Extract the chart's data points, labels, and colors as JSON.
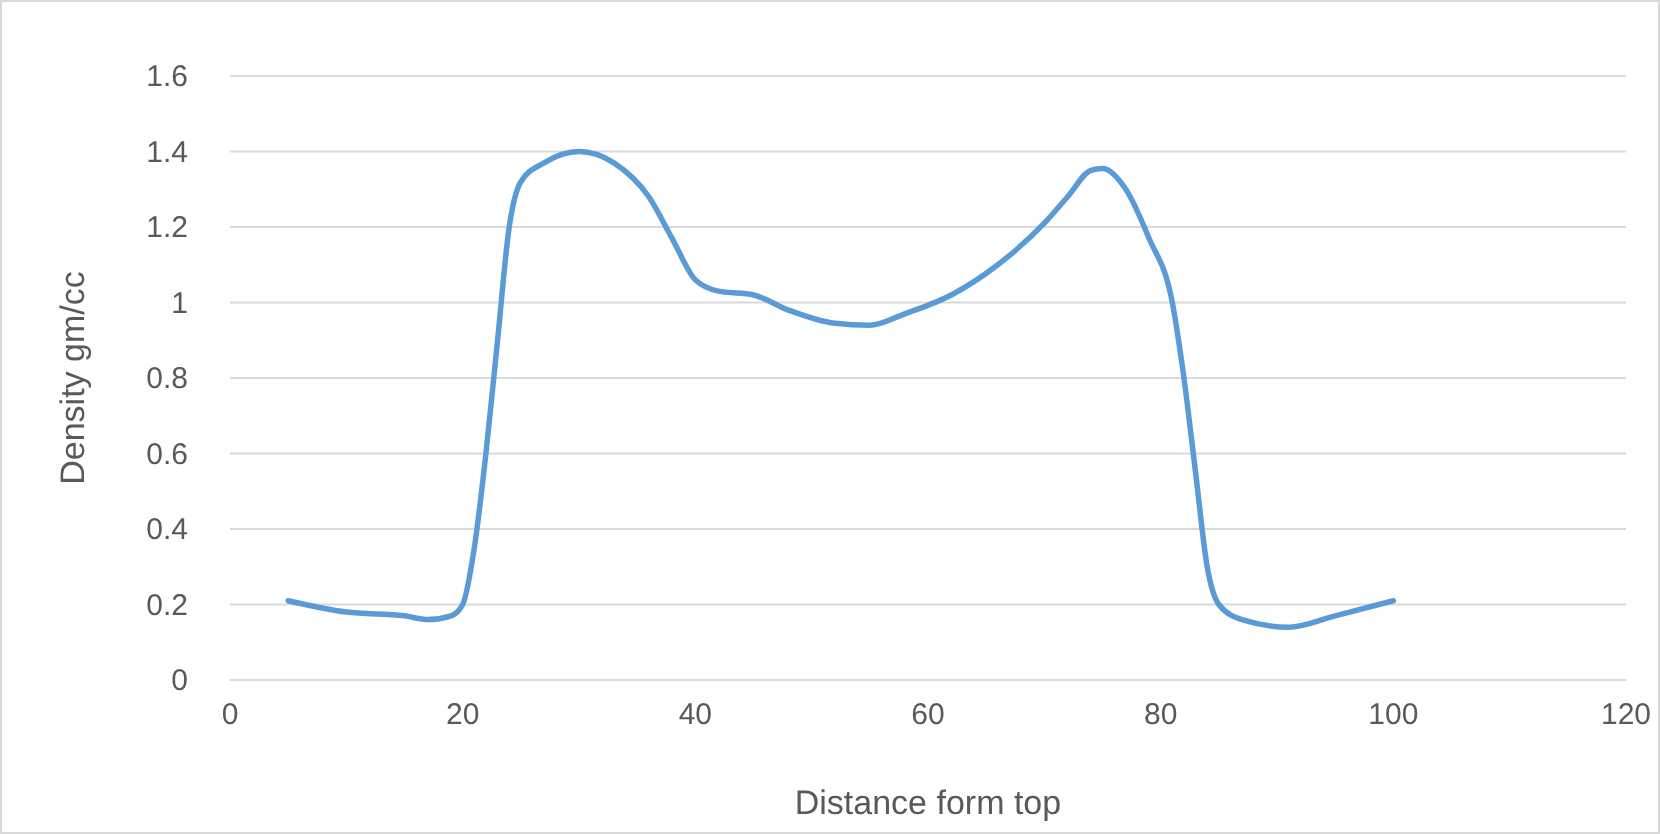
{
  "chart_data": {
    "type": "line",
    "xlabel": "Distance form top",
    "ylabel": "Density gm/cc",
    "xlim": [
      0,
      120
    ],
    "xticks": [
      0,
      20,
      40,
      60,
      80,
      100,
      120
    ],
    "ylim": [
      0,
      1.6
    ],
    "yticks": [
      0,
      0.2,
      0.4,
      0.6,
      0.8,
      1,
      1.2,
      1.4,
      1.6
    ],
    "grid": "y",
    "marker": "none",
    "line_style": "solid",
    "series": [
      {
        "color": "#5b9bd5",
        "x": [
          5,
          10,
          15,
          17,
          19,
          20,
          21,
          22,
          23,
          24,
          25,
          27,
          30,
          33,
          36,
          38,
          40,
          42,
          45,
          48,
          52,
          55,
          58,
          62,
          66,
          70,
          72,
          74,
          75,
          77,
          79,
          81,
          82,
          83,
          84,
          85,
          87,
          91,
          95,
          100
        ],
        "values": [
          0.21,
          0.18,
          0.17,
          0.16,
          0.17,
          0.2,
          0.35,
          0.6,
          0.9,
          1.2,
          1.32,
          1.37,
          1.4,
          1.37,
          1.28,
          1.17,
          1.06,
          1.03,
          1.02,
          0.98,
          0.945,
          0.94,
          0.97,
          1.02,
          1.1,
          1.21,
          1.28,
          1.35,
          1.355,
          1.3,
          1.17,
          1,
          0.8,
          0.55,
          0.3,
          0.2,
          0.16,
          0.14,
          0.17,
          0.21
        ]
      }
    ]
  }
}
